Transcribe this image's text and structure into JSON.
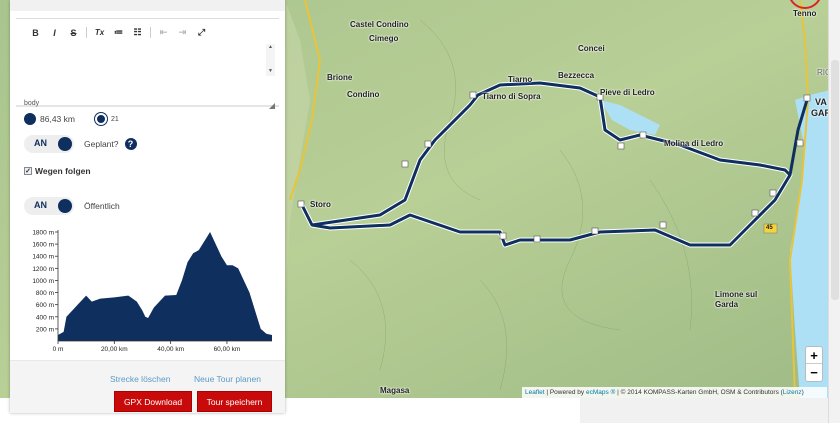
{
  "editor": {
    "toolbar": [
      {
        "icon": "bold-icon",
        "glyph": "B"
      },
      {
        "icon": "italic-icon",
        "glyph": "I"
      },
      {
        "icon": "strikethrough-icon",
        "glyph": "S"
      },
      {
        "icon": "remove-format-icon",
        "glyph": "Tx"
      },
      {
        "icon": "numbered-list-icon",
        "glyph": "≔"
      },
      {
        "icon": "bulleted-list-icon",
        "glyph": "☷"
      },
      {
        "icon": "outdent-icon",
        "glyph": "⇤"
      },
      {
        "icon": "indent-icon",
        "glyph": "⇥"
      },
      {
        "icon": "maximize-icon",
        "glyph": "⤢"
      }
    ],
    "path": "body"
  },
  "stats": {
    "distance": "86,43 km",
    "waypoints": "21"
  },
  "planned": {
    "toggle": "AN",
    "label": "Geplant?",
    "help": "?"
  },
  "follow_roads": {
    "checked": true,
    "label": "Wegen folgen"
  },
  "public": {
    "toggle": "AN",
    "label": "Öffentlich"
  },
  "chart_data": {
    "type": "area",
    "x": [
      0,
      2,
      3,
      5,
      8,
      10,
      12,
      15,
      20,
      25,
      28,
      30,
      31,
      32,
      34,
      36,
      38,
      42,
      44,
      46,
      48,
      50,
      52,
      54,
      56,
      58,
      60,
      62,
      64,
      66,
      68,
      70,
      72,
      74,
      76
    ],
    "y": [
      100,
      150,
      400,
      500,
      650,
      750,
      650,
      700,
      720,
      750,
      650,
      500,
      400,
      380,
      550,
      650,
      750,
      760,
      1000,
      1300,
      1450,
      1500,
      1650,
      1800,
      1600,
      1400,
      1250,
      1250,
      1200,
      1000,
      800,
      500,
      200,
      120,
      100
    ],
    "xlim": [
      0,
      76
    ],
    "ylim": [
      0,
      1800
    ],
    "xticks": [
      "0 m",
      "20,00 km",
      "40,00 km",
      "60,00 km"
    ],
    "xtick_values": [
      0,
      20,
      40,
      60
    ],
    "yticks": [
      "200 m",
      "400 m",
      "600 m",
      "800 m",
      "1000 m",
      "1200 m",
      "1400 m",
      "1600 m",
      "1800 m"
    ],
    "ytick_values": [
      200,
      400,
      600,
      800,
      1000,
      1200,
      1400,
      1600,
      1800
    ],
    "color": "#0f2f5f"
  },
  "footer": {
    "delete": "Strecke löschen",
    "new_tour": "Neue Tour planen",
    "gpx": "GPX Download",
    "save": "Tour speichern"
  },
  "map": {
    "places": [
      "Castel Condino",
      "Cimego",
      "Concei",
      "Brione",
      "Condino",
      "Tiarno",
      "Bezzecca",
      "Tiarno di Sopra",
      "Pieve di Ledro",
      "Molina di Ledro",
      "Storo",
      "Tenno",
      "RIC",
      "VA",
      "GARD",
      "Limone sul",
      "Garda",
      "Magasa",
      "45"
    ],
    "zoom_in": "+",
    "zoom_out": "−",
    "attribution": {
      "leaflet": "Leaflet",
      "powered": " | Powered by ",
      "ecmaps": "ecMaps ®",
      "rest": " | © 2014 KOMPASS-Karten GmbH, OSM & Contributors (",
      "lizenz": "Lizenz",
      "close": ")"
    }
  },
  "colors": {
    "route": "#0f2f5f",
    "button": "#c80a0a",
    "link": "#5b9ac7"
  }
}
